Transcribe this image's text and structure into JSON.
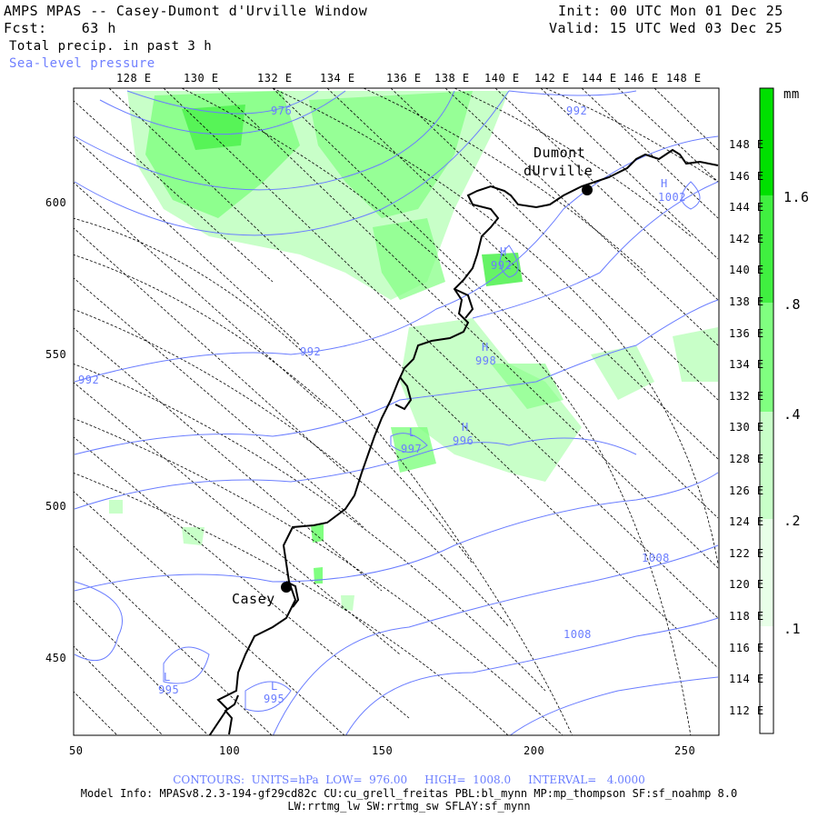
{
  "header": {
    "title": "AMPS MPAS -- Casey-Dumont d'Urville Window",
    "fcst": "Fcst:    63 h",
    "field": "Total precip. in past 3 h",
    "overlay": "Sea-level pressure",
    "init": "Init: 00 UTC Mon 01 Dec 25",
    "valid": "Valid: 15 UTC Wed 03 Dec 25"
  },
  "top_lon_labels": [
    "128 E",
    "130 E",
    "132 E",
    "134 E",
    "136 E",
    "138 E",
    "140 E",
    "142 E",
    "144 E",
    "146 E",
    "148 E"
  ],
  "right_lon_labels": [
    "148 E",
    "146 E",
    "144 E",
    "142 E",
    "140 E",
    "138 E",
    "136 E",
    "134 E",
    "132 E",
    "130 E",
    "128 E",
    "126 E",
    "124 E",
    "122 E",
    "120 E",
    "118 E",
    "116 E",
    "114 E",
    "112 E"
  ],
  "x_ticks": [
    "50",
    "100",
    "150",
    "200",
    "250"
  ],
  "y_ticks": [
    "600",
    "550",
    "500",
    "450"
  ],
  "stations": {
    "casey": "Casey",
    "dumont_1": "Dumont",
    "dumont_2": "dUrville"
  },
  "pressure_labels": [
    "976",
    "992",
    "992",
    "992",
    "992",
    "1002",
    "998",
    "997",
    "996",
    "1008",
    "1008",
    "995",
    "995"
  ],
  "pressure_markers": [
    "H",
    "H",
    "H",
    "L",
    "H",
    "L",
    "L"
  ],
  "colorbar": {
    "unit": "mm",
    "labels": [
      "1.6",
      ".8",
      ".4",
      ".2",
      ".1"
    ],
    "colors": [
      "#00e000",
      "#40f040",
      "#80ff80",
      "#c8ffc8",
      "#ffffff"
    ]
  },
  "footer": {
    "contours": "CONTOURS:  UNITS=hPa  LOW=  976.00     HIGH=  1008.0     INTERVAL=   4.0000",
    "model1": "Model Info: MPASv8.2.3-194-gf29cd82c CU:cu_grell_freitas PBL:bl_mynn MP:mp_thompson SF:sf_noahmp 8.0",
    "model2": "LW:rrtmg_lw SW:rrtmg_sw SFLAY:sf_mynn"
  },
  "colors": {
    "contour": "#6a7dff",
    "grid": "#000000",
    "coast": "#000000",
    "precip_light": "#c8ffc8",
    "precip_mid": "#80ff80",
    "precip_high": "#40f040"
  }
}
